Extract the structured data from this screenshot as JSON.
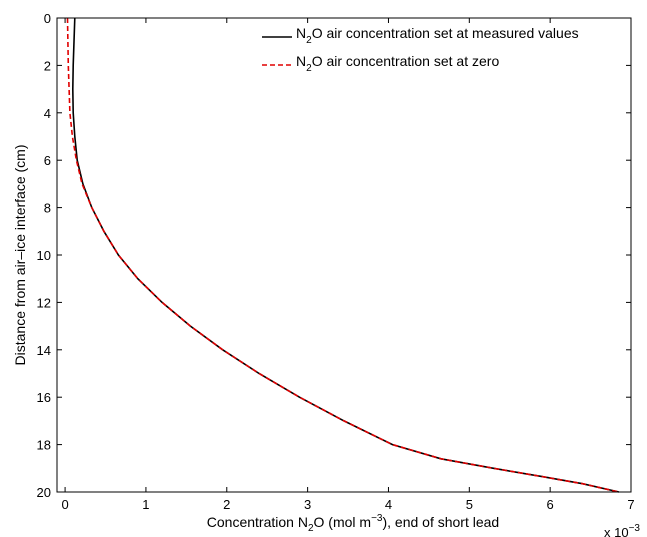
{
  "chart_data": {
    "type": "line",
    "title": "",
    "xlabel": {
      "prefix": "Concentration N",
      "sub": "2",
      "mid": "O (mol m",
      "sup": "−3",
      "suffix": "), end of short lead"
    },
    "ylabel": "Distance from air–ice interface (cm)",
    "x_exponent_label": "x 10",
    "x_exponent_value": "−3",
    "xlim": [
      -0.1,
      7.0
    ],
    "ylim": [
      0,
      20
    ],
    "y_reversed": true,
    "xticks": [
      0,
      1,
      2,
      3,
      4,
      5,
      6
    ],
    "xtick_labels": [
      "0",
      "1",
      "2",
      "3",
      "4",
      "5",
      "6"
    ],
    "xtick_edge_label": "7",
    "yticks": [
      0,
      2,
      4,
      6,
      8,
      10,
      12,
      14,
      16,
      18,
      20
    ],
    "ytick_labels": [
      "0",
      "2",
      "4",
      "6",
      "8",
      "10",
      "12",
      "14",
      "16",
      "18",
      "20"
    ],
    "grid": false,
    "legend_position": "top-right",
    "series": [
      {
        "name_parts": [
          "N",
          "2",
          "O air concentration set at measured values"
        ],
        "color": "#000000",
        "dash": "solid",
        "x": [
          0.12,
          0.11,
          0.1,
          0.095,
          0.1,
          0.12,
          0.15,
          0.22,
          0.33,
          0.48,
          0.66,
          0.9,
          1.2,
          1.55,
          1.95,
          2.4,
          2.9,
          3.45,
          4.05,
          4.65,
          5.3,
          5.9,
          6.4,
          6.85
        ],
        "y": [
          0,
          1,
          2,
          3,
          4,
          5,
          6,
          7,
          8,
          9,
          10,
          11,
          12,
          13,
          14,
          15,
          16,
          17,
          18,
          18.6,
          19.0,
          19.35,
          19.65,
          20
        ]
      },
      {
        "name_parts": [
          "N",
          "2",
          "O air concentration set at zero"
        ],
        "color": "#e00000",
        "dash": "dashed",
        "x": [
          0.03,
          0.035,
          0.04,
          0.05,
          0.06,
          0.09,
          0.14,
          0.21,
          0.33,
          0.48,
          0.66,
          0.9,
          1.2,
          1.55,
          1.95,
          2.4,
          2.9,
          3.45,
          4.05,
          4.65,
          5.3,
          5.9,
          6.4,
          6.85
        ],
        "y": [
          0,
          1,
          2,
          3,
          4,
          5,
          6,
          7,
          8,
          9,
          10,
          11,
          12,
          13,
          14,
          15,
          16,
          17,
          18,
          18.6,
          19.0,
          19.35,
          19.65,
          20
        ]
      }
    ]
  }
}
